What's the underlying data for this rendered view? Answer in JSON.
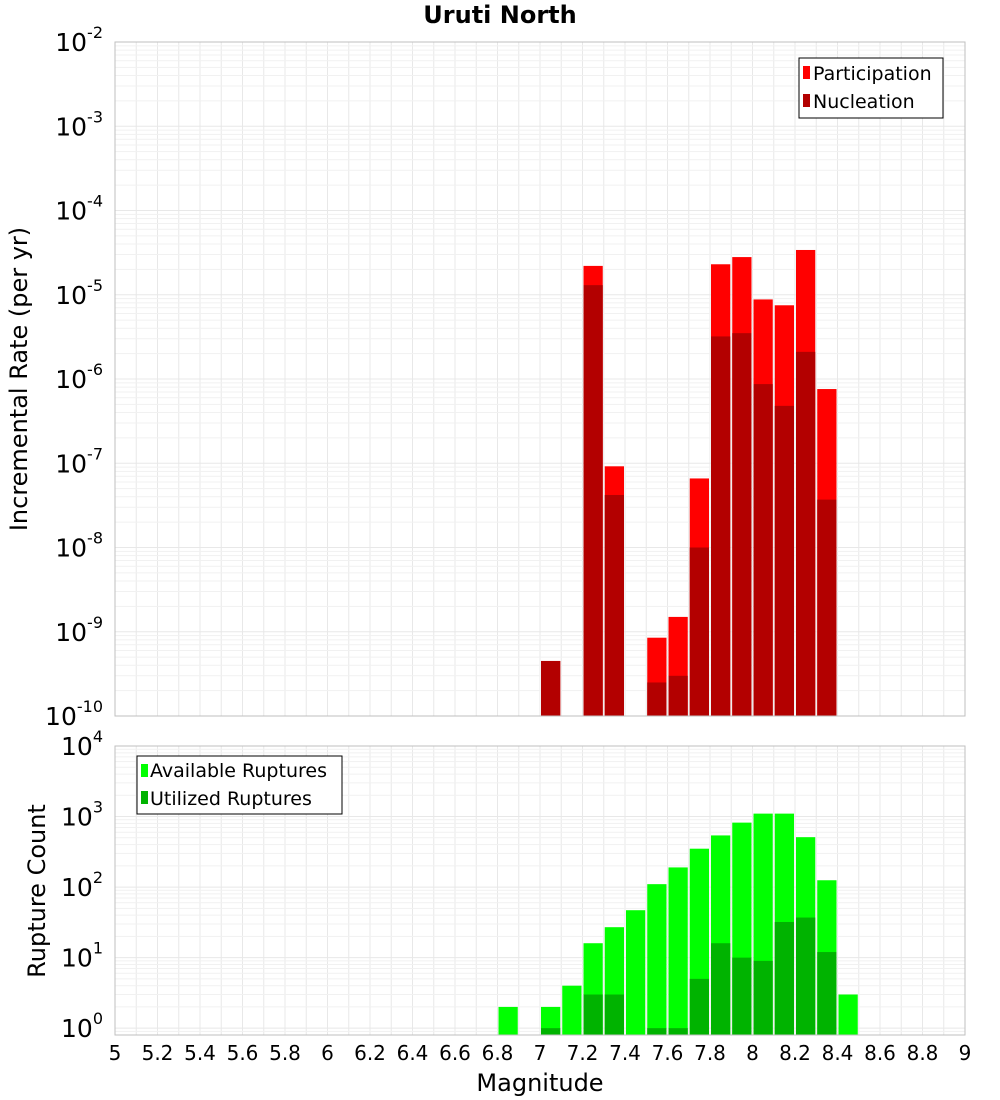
{
  "chart_data": [
    {
      "type": "bar",
      "title": "Uruti North",
      "ylabel": "Incremental Rate (per yr)",
      "xlabel": "",
      "yscale": "log",
      "xlim": [
        5,
        9
      ],
      "ylim": [
        1e-10,
        0.01
      ],
      "y_tick_exponents": [
        -2,
        -3,
        -4,
        -5,
        -6,
        -7,
        -8,
        -9,
        -10
      ],
      "legend": {
        "placement": "top-right",
        "entries": [
          "Participation",
          "Nucleation"
        ]
      },
      "grid": true,
      "series": [
        {
          "name": "Participation",
          "color": "#ff0000",
          "points": [
            {
              "x": 7.05,
              "y": 4.5e-10
            },
            {
              "x": 7.25,
              "y": 2.2e-05
            },
            {
              "x": 7.35,
              "y": 9.2e-08
            },
            {
              "x": 7.55,
              "y": 8.5e-10
            },
            {
              "x": 7.65,
              "y": 1.5e-09
            },
            {
              "x": 7.75,
              "y": 6.6e-08
            },
            {
              "x": 7.85,
              "y": 2.3e-05
            },
            {
              "x": 7.95,
              "y": 2.8e-05
            },
            {
              "x": 8.05,
              "y": 8.8e-06
            },
            {
              "x": 8.15,
              "y": 7.5e-06
            },
            {
              "x": 8.25,
              "y": 3.4e-05
            },
            {
              "x": 8.35,
              "y": 7.6e-07
            }
          ]
        },
        {
          "name": "Nucleation",
          "color": "#b30000",
          "points": [
            {
              "x": 7.05,
              "y": 4.5e-10
            },
            {
              "x": 7.25,
              "y": 1.3e-05
            },
            {
              "x": 7.35,
              "y": 4.2e-08
            },
            {
              "x": 7.55,
              "y": 2.5e-10
            },
            {
              "x": 7.65,
              "y": 3e-10
            },
            {
              "x": 7.75,
              "y": 1e-08
            },
            {
              "x": 7.85,
              "y": 3.2e-06
            },
            {
              "x": 7.95,
              "y": 3.5e-06
            },
            {
              "x": 8.05,
              "y": 8.7e-07
            },
            {
              "x": 8.15,
              "y": 4.8e-07
            },
            {
              "x": 8.25,
              "y": 2.1e-06
            },
            {
              "x": 8.35,
              "y": 3.7e-08
            }
          ]
        }
      ]
    },
    {
      "type": "bar",
      "title": "",
      "ylabel": "Rupture Count",
      "xlabel": "Magnitude",
      "yscale": "log",
      "xlim": [
        5,
        9
      ],
      "ylim": [
        0.8,
        10000.0
      ],
      "y_tick_exponents": [
        4,
        3,
        2,
        1,
        0
      ],
      "x_ticks": [
        "5",
        "5.2",
        "5.4",
        "5.6",
        "5.8",
        "6",
        "6.2",
        "6.4",
        "6.6",
        "6.8",
        "7",
        "7.2",
        "7.4",
        "7.6",
        "7.8",
        "8",
        "8.2",
        "8.4",
        "8.6",
        "8.8",
        "9"
      ],
      "legend": {
        "placement": "top-left",
        "entries": [
          "Available Ruptures",
          "Utilized Ruptures"
        ]
      },
      "grid": true,
      "series": [
        {
          "name": "Available Ruptures",
          "color": "#00ff00",
          "points": [
            {
              "x": 6.85,
              "y": 2
            },
            {
              "x": 7.05,
              "y": 2
            },
            {
              "x": 7.15,
              "y": 4
            },
            {
              "x": 7.25,
              "y": 16
            },
            {
              "x": 7.35,
              "y": 27
            },
            {
              "x": 7.45,
              "y": 47
            },
            {
              "x": 7.55,
              "y": 110
            },
            {
              "x": 7.65,
              "y": 190
            },
            {
              "x": 7.75,
              "y": 350
            },
            {
              "x": 7.85,
              "y": 540
            },
            {
              "x": 7.95,
              "y": 820
            },
            {
              "x": 8.05,
              "y": 1100
            },
            {
              "x": 8.15,
              "y": 1100
            },
            {
              "x": 8.25,
              "y": 510
            },
            {
              "x": 8.35,
              "y": 125
            },
            {
              "x": 8.45,
              "y": 3
            }
          ]
        },
        {
          "name": "Utilized Ruptures",
          "color": "#00b300",
          "points": [
            {
              "x": 7.05,
              "y": 1
            },
            {
              "x": 7.25,
              "y": 3
            },
            {
              "x": 7.35,
              "y": 3
            },
            {
              "x": 7.55,
              "y": 1
            },
            {
              "x": 7.65,
              "y": 1
            },
            {
              "x": 7.75,
              "y": 5
            },
            {
              "x": 7.85,
              "y": 16
            },
            {
              "x": 7.95,
              "y": 10
            },
            {
              "x": 8.05,
              "y": 9
            },
            {
              "x": 8.15,
              "y": 32
            },
            {
              "x": 8.25,
              "y": 37
            },
            {
              "x": 8.35,
              "y": 12
            }
          ]
        }
      ]
    }
  ]
}
